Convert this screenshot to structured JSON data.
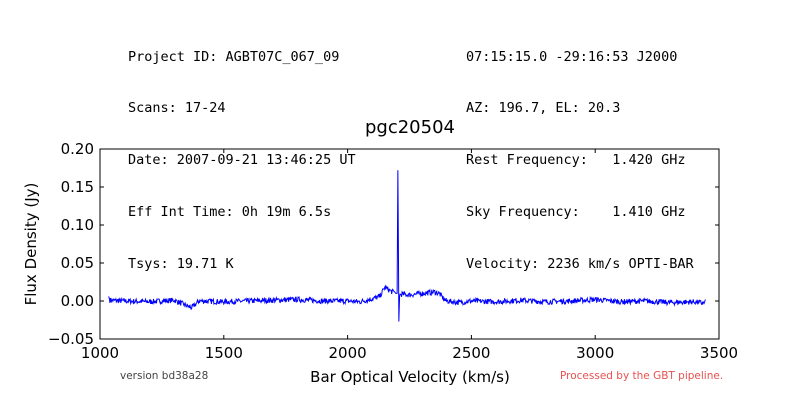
{
  "header_left": [
    "Project ID: AGBT07C_067_09",
    "Scans: 17-24",
    "Date: 2007-09-21 13:46:25 UT",
    "Eff Int Time: 0h 19m 6.5s",
    "Tsys: 19.71 K"
  ],
  "header_right": [
    "07:15:15.0 -29:16:53 J2000",
    "AZ: 196.7, EL: 20.3",
    "Rest Frequency:   1.420 GHz",
    "Sky Frequency:    1.410 GHz",
    "Velocity: 2236 km/s OPTI-BAR"
  ],
  "footer": {
    "version": "version bd38a28",
    "pipeline": "Processed by the GBT pipeline."
  },
  "colors": {
    "series": "#0000ff",
    "pipeline_text": "#e85050",
    "version_text": "#444444"
  },
  "chart_data": {
    "type": "line",
    "title": "pgc20504",
    "xlabel": "Bar Optical Velocity (km/s)",
    "ylabel": "Flux Density (Jy)",
    "xlim": [
      1000,
      3500
    ],
    "ylim": [
      -0.05,
      0.2
    ],
    "xticks": [
      1000,
      1500,
      2000,
      2500,
      3000,
      3500
    ],
    "yticks": [
      -0.05,
      0.0,
      0.05,
      0.1,
      0.15,
      0.2
    ],
    "xtick_labels": [
      "1000",
      "1500",
      "2000",
      "2500",
      "3000",
      "3500"
    ],
    "ytick_labels": [
      "−0.05",
      "0.00",
      "0.05",
      "0.10",
      "0.15",
      "0.20"
    ],
    "grid": false,
    "series": [
      {
        "x": [
          1035,
          1040,
          1100,
          1200,
          1300,
          1370,
          1400,
          1500,
          1600,
          1700,
          1800,
          1900,
          2000,
          2050,
          2100,
          2130,
          2140,
          2150,
          2160,
          2170,
          2180,
          2190,
          2195,
          2200,
          2203,
          2205,
          2207,
          2210,
          2220,
          2250,
          2300,
          2330,
          2350,
          2370,
          2380,
          2390,
          2400,
          2450,
          2500,
          2600,
          2700,
          2800,
          2900,
          3000,
          3100,
          3200,
          3300,
          3400,
          3440,
          3445
        ],
        "y": [
          0.006,
          0.001,
          0.0,
          -0.001,
          0.001,
          -0.009,
          0.0,
          -0.001,
          0.0,
          0.001,
          0.002,
          0.0,
          0.0,
          -0.001,
          0.003,
          0.006,
          0.012,
          0.018,
          0.016,
          0.014,
          0.012,
          0.012,
          0.01,
          0.01,
          0.172,
          0.08,
          -0.027,
          0.008,
          0.009,
          0.008,
          0.01,
          0.011,
          0.012,
          0.01,
          0.006,
          0.002,
          0.0,
          -0.002,
          0.0,
          -0.001,
          0.001,
          -0.001,
          0.0,
          0.002,
          -0.001,
          0.0,
          -0.002,
          -0.001,
          -0.003,
          0.002
        ]
      }
    ]
  }
}
